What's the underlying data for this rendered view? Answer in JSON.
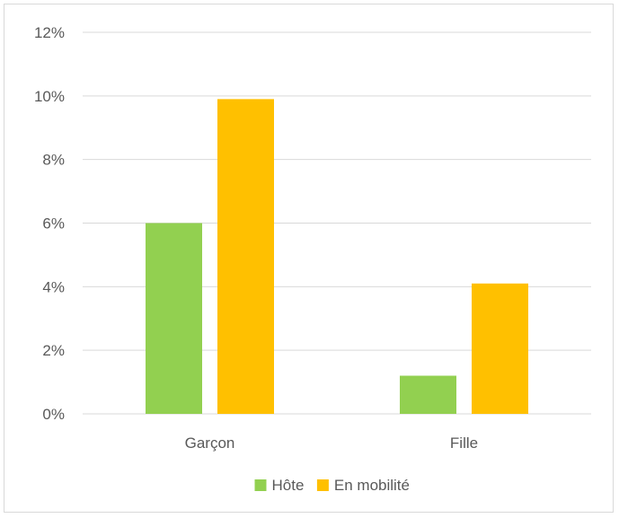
{
  "chart_data": {
    "type": "bar",
    "title": "",
    "xlabel": "",
    "ylabel": "",
    "categories": [
      "Garçon",
      "Fille"
    ],
    "series": [
      {
        "name": "Hôte",
        "values": [
          6.0,
          1.2
        ],
        "color": "#92d050"
      },
      {
        "name": "En mobilité",
        "values": [
          9.9,
          4.1
        ],
        "color": "#ffc000"
      }
    ],
    "ylim": [
      0,
      12
    ],
    "y_ticks": [
      0,
      2,
      4,
      6,
      8,
      10,
      12
    ],
    "y_tick_labels": [
      "0%",
      "2%",
      "4%",
      "6%",
      "8%",
      "10%",
      "12%"
    ],
    "y_unit": "%",
    "grid": true,
    "legend_position": "bottom",
    "gridline_color": "#d9d9d9"
  }
}
